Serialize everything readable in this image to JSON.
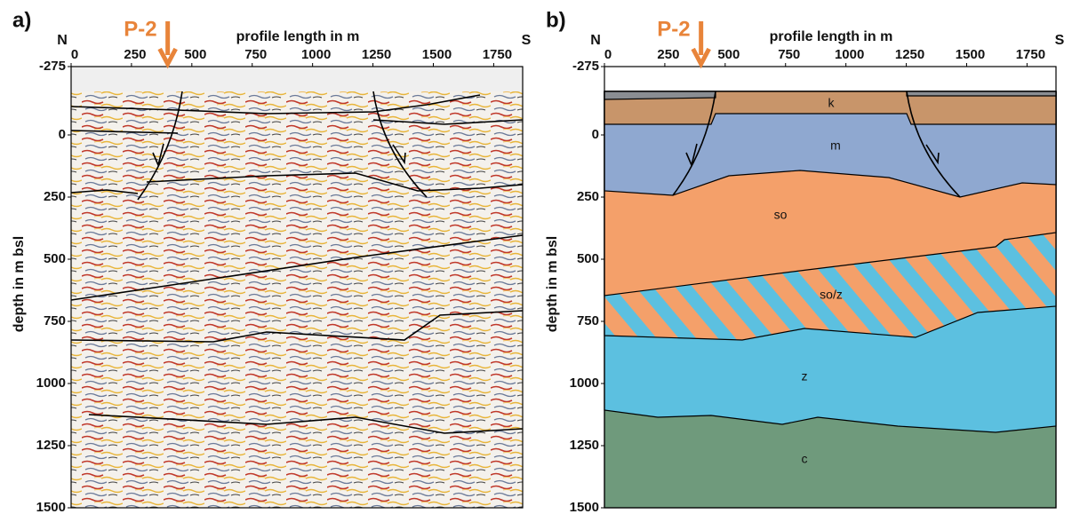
{
  "chart_data": [
    {
      "type": "seismic",
      "label": "a)",
      "title": "profile length in m",
      "ylabel": "depth in m bsl",
      "north": "N",
      "south": "S",
      "well": "P-2",
      "well_x": 400,
      "xlim": [
        0,
        1870
      ],
      "xticks": [
        0,
        250,
        500,
        750,
        1000,
        1250,
        1500,
        1750
      ],
      "ylim": [
        -275,
        1500
      ],
      "yticks": [
        -275,
        0,
        250,
        500,
        750,
        1000,
        1250,
        1500
      ]
    },
    {
      "type": "geologic",
      "label": "b)",
      "title": "profile length in m",
      "ylabel": "depth in m bsl",
      "north": "N",
      "south": "S",
      "well": "P-2",
      "well_x": 400,
      "xlim": [
        0,
        1870
      ],
      "xticks": [
        0,
        250,
        500,
        750,
        1000,
        1250,
        1500,
        1750
      ],
      "ylim": [
        -275,
        1500
      ],
      "yticks": [
        -275,
        0,
        250,
        500,
        750,
        1000,
        1250,
        1500
      ],
      "units": [
        "k",
        "m",
        "so",
        "so/z",
        "z",
        "c"
      ]
    }
  ]
}
